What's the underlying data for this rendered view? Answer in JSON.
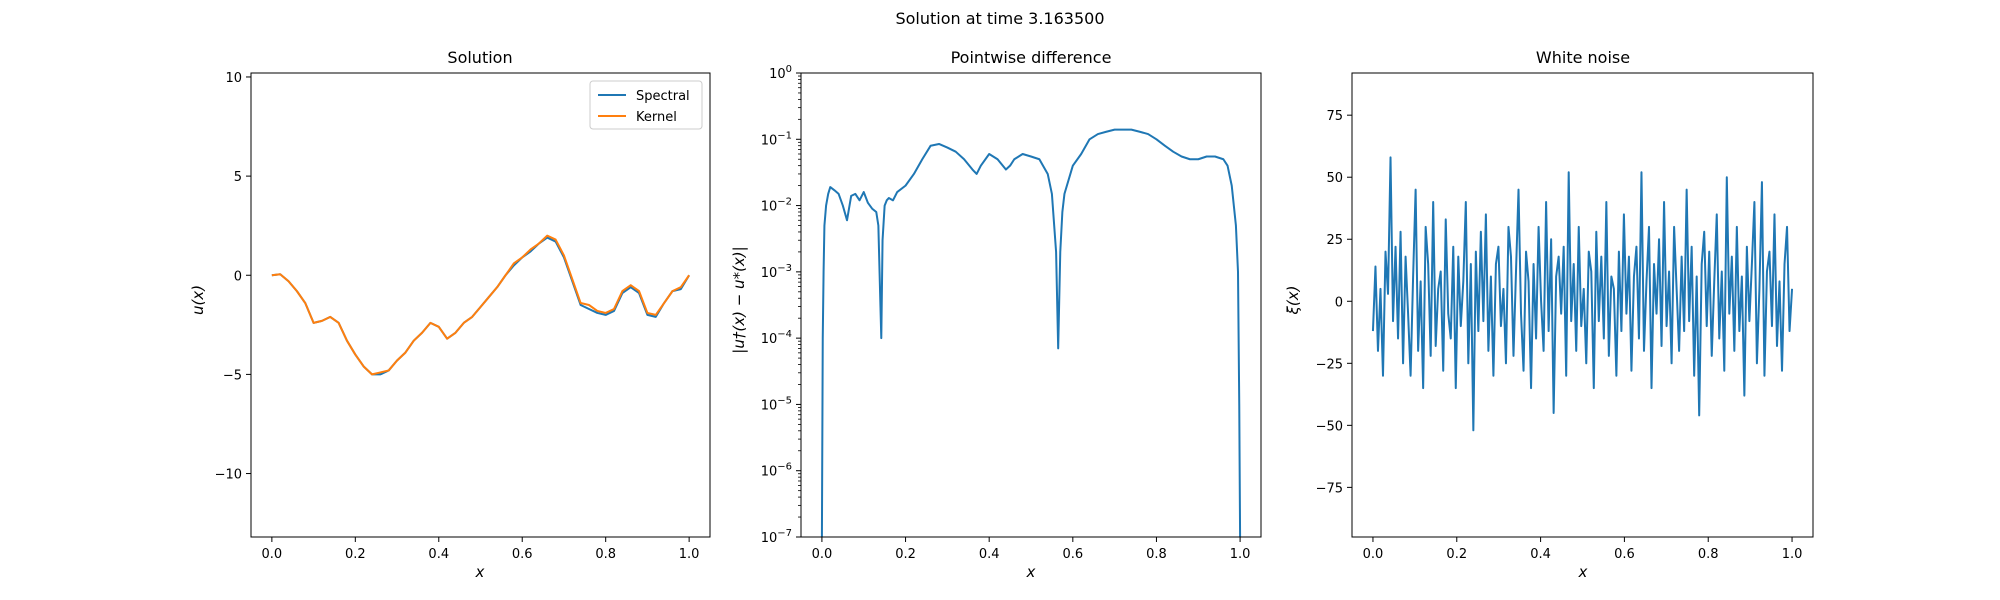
{
  "suptitle": "Solution at time 3.163500",
  "colors": {
    "blue": "#1f77b4",
    "orange": "#ff7f0e"
  },
  "chart_data": [
    {
      "type": "line",
      "title": "Solution",
      "xlabel": "x",
      "ylabel": "u(x)",
      "xlim": [
        -0.05,
        1.05
      ],
      "ylim": [
        -13.2,
        10.2
      ],
      "xticks": [
        0.0,
        0.2,
        0.4,
        0.6,
        0.8,
        1.0
      ],
      "xtick_labels": [
        "0.0",
        "0.2",
        "0.4",
        "0.6",
        "0.8",
        "1.0"
      ],
      "yticks": [
        -10,
        -5,
        0,
        5,
        10
      ],
      "ytick_labels": [
        "−10",
        "−5",
        "0",
        "5",
        "10"
      ],
      "legend": {
        "position": "upper right",
        "entries": [
          "Spectral",
          "Kernel"
        ]
      },
      "grid": false,
      "x": [
        0.0,
        0.02,
        0.04,
        0.06,
        0.08,
        0.1,
        0.12,
        0.14,
        0.16,
        0.18,
        0.2,
        0.22,
        0.24,
        0.26,
        0.28,
        0.3,
        0.32,
        0.34,
        0.36,
        0.38,
        0.4,
        0.42,
        0.44,
        0.46,
        0.48,
        0.5,
        0.52,
        0.54,
        0.56,
        0.58,
        0.6,
        0.62,
        0.64,
        0.66,
        0.68,
        0.7,
        0.72,
        0.74,
        0.76,
        0.78,
        0.8,
        0.82,
        0.84,
        0.86,
        0.88,
        0.9,
        0.92,
        0.94,
        0.96,
        0.98,
        1.0
      ],
      "series": [
        {
          "name": "Spectral",
          "color": "#1f77b4",
          "values": [
            0.0,
            0.05,
            -0.3,
            -0.8,
            -1.4,
            -2.4,
            -2.3,
            -2.1,
            -2.4,
            -3.3,
            -4.0,
            -4.6,
            -5.0,
            -5.0,
            -4.8,
            -4.3,
            -3.9,
            -3.3,
            -2.9,
            -2.4,
            -2.6,
            -3.2,
            -2.9,
            -2.4,
            -2.1,
            -1.6,
            -1.1,
            -0.6,
            0.0,
            0.5,
            0.9,
            1.2,
            1.6,
            1.9,
            1.7,
            0.9,
            -0.3,
            -1.5,
            -1.7,
            -1.9,
            -2.0,
            -1.8,
            -0.9,
            -0.6,
            -0.9,
            -2.0,
            -2.1,
            -1.4,
            -0.8,
            -0.7,
            0.0
          ]
        },
        {
          "name": "Kernel",
          "color": "#ff7f0e",
          "values": [
            0.0,
            0.05,
            -0.3,
            -0.8,
            -1.4,
            -2.4,
            -2.3,
            -2.1,
            -2.4,
            -3.3,
            -4.0,
            -4.6,
            -5.0,
            -4.9,
            -4.8,
            -4.3,
            -3.9,
            -3.3,
            -2.9,
            -2.4,
            -2.6,
            -3.2,
            -2.9,
            -2.4,
            -2.1,
            -1.6,
            -1.1,
            -0.6,
            0.0,
            0.6,
            0.9,
            1.3,
            1.6,
            2.0,
            1.8,
            1.0,
            -0.2,
            -1.4,
            -1.5,
            -1.8,
            -1.9,
            -1.7,
            -0.8,
            -0.5,
            -0.8,
            -1.9,
            -2.0,
            -1.4,
            -0.8,
            -0.6,
            0.0
          ]
        }
      ]
    },
    {
      "type": "line",
      "title": "Pointwise difference",
      "xlabel": "x",
      "ylabel": "|u†(x) − u*(x)|",
      "yscale": "log",
      "xlim": [
        -0.05,
        1.05
      ],
      "ylim": [
        1e-07,
        1
      ],
      "xticks": [
        0.0,
        0.2,
        0.4,
        0.6,
        0.8,
        1.0
      ],
      "xtick_labels": [
        "0.0",
        "0.2",
        "0.4",
        "0.6",
        "0.8",
        "1.0"
      ],
      "yticks": [
        1e-07,
        1e-06,
        1e-05,
        0.0001,
        0.001,
        0.01,
        0.1,
        1
      ],
      "ytick_labels": [
        {
          "base": "10",
          "exp": "−7"
        },
        {
          "base": "10",
          "exp": "−6"
        },
        {
          "base": "10",
          "exp": "−5"
        },
        {
          "base": "10",
          "exp": "−4"
        },
        {
          "base": "10",
          "exp": "−3"
        },
        {
          "base": "10",
          "exp": "−2"
        },
        {
          "base": "10",
          "exp": "−1"
        },
        {
          "base": "10",
          "exp": "0"
        }
      ],
      "grid": false,
      "series": [
        {
          "color": "#1f77b4",
          "x": [
            0.0,
            0.002,
            0.004,
            0.006,
            0.01,
            0.015,
            0.02,
            0.03,
            0.04,
            0.05,
            0.06,
            0.07,
            0.08,
            0.09,
            0.1,
            0.11,
            0.12,
            0.13,
            0.135,
            0.14,
            0.142,
            0.145,
            0.15,
            0.155,
            0.16,
            0.17,
            0.18,
            0.2,
            0.22,
            0.24,
            0.26,
            0.28,
            0.3,
            0.32,
            0.34,
            0.36,
            0.37,
            0.38,
            0.4,
            0.42,
            0.44,
            0.45,
            0.46,
            0.48,
            0.5,
            0.52,
            0.54,
            0.55,
            0.56,
            0.565,
            0.57,
            0.575,
            0.58,
            0.6,
            0.62,
            0.64,
            0.66,
            0.68,
            0.7,
            0.72,
            0.74,
            0.76,
            0.78,
            0.8,
            0.82,
            0.84,
            0.86,
            0.88,
            0.9,
            0.92,
            0.94,
            0.96,
            0.97,
            0.98,
            0.99,
            0.995,
            0.998,
            1.0
          ],
          "values": [
            1e-07,
            0.0001,
            0.001,
            0.005,
            0.01,
            0.015,
            0.019,
            0.017,
            0.015,
            0.01,
            0.006,
            0.014,
            0.015,
            0.012,
            0.016,
            0.011,
            0.009,
            0.008,
            0.005,
            0.0003,
            0.0001,
            0.003,
            0.01,
            0.012,
            0.013,
            0.012,
            0.016,
            0.02,
            0.03,
            0.05,
            0.08,
            0.085,
            0.075,
            0.065,
            0.05,
            0.035,
            0.03,
            0.04,
            0.06,
            0.05,
            0.035,
            0.04,
            0.05,
            0.06,
            0.055,
            0.05,
            0.03,
            0.015,
            0.002,
            7e-05,
            0.002,
            0.008,
            0.015,
            0.04,
            0.06,
            0.1,
            0.12,
            0.13,
            0.14,
            0.14,
            0.14,
            0.13,
            0.12,
            0.1,
            0.08,
            0.065,
            0.055,
            0.05,
            0.05,
            0.055,
            0.055,
            0.05,
            0.04,
            0.02,
            0.005,
            0.001,
            1e-05,
            1e-07
          ]
        }
      ]
    },
    {
      "type": "line",
      "title": "White noise",
      "xlabel": "x",
      "ylabel": "ξ(x)",
      "xlim": [
        -0.05,
        1.05
      ],
      "ylim": [
        -95,
        92
      ],
      "xticks": [
        0.0,
        0.2,
        0.4,
        0.6,
        0.8,
        1.0
      ],
      "xtick_labels": [
        "0.0",
        "0.2",
        "0.4",
        "0.6",
        "0.8",
        "1.0"
      ],
      "yticks": [
        -75,
        -50,
        -25,
        0,
        25,
        50,
        75
      ],
      "ytick_labels": [
        "−75",
        "−50",
        "−25",
        "0",
        "25",
        "50",
        "75"
      ],
      "grid": false,
      "series": [
        {
          "color": "#1f77b4",
          "x_start": 0.0,
          "x_end": 1.0,
          "values": [
            -12,
            14,
            -20,
            5,
            -30,
            20,
            3,
            58,
            -8,
            22,
            -15,
            28,
            -25,
            18,
            -5,
            -30,
            10,
            45,
            -20,
            8,
            -35,
            30,
            15,
            -22,
            40,
            -18,
            5,
            12,
            -28,
            33,
            -5,
            -15,
            22,
            -35,
            18,
            -10,
            8,
            40,
            -25,
            15,
            -52,
            20,
            -12,
            28,
            -8,
            35,
            -20,
            10,
            -30,
            15,
            22,
            -10,
            5,
            -25,
            30,
            18,
            -22,
            12,
            45,
            -5,
            -28,
            20,
            8,
            -35,
            15,
            -15,
            30,
            0,
            -20,
            40,
            -12,
            25,
            -45,
            10,
            18,
            -5,
            22,
            -30,
            52,
            -8,
            15,
            -20,
            30,
            -10,
            5,
            -25,
            20,
            12,
            -35,
            28,
            -8,
            18,
            -15,
            40,
            -22,
            10,
            5,
            -30,
            20,
            -12,
            35,
            -5,
            18,
            -28,
            10,
            22,
            -15,
            52,
            -20,
            8,
            30,
            -35,
            15,
            -5,
            25,
            -18,
            40,
            -10,
            12,
            -25,
            30,
            5,
            -20,
            18,
            -12,
            45,
            -8,
            22,
            -30,
            10,
            -46,
            15,
            28,
            -10,
            20,
            -22,
            8,
            35,
            -15,
            12,
            -28,
            50,
            -5,
            18,
            -20,
            30,
            -12,
            10,
            -38,
            22,
            -8,
            15,
            40,
            -25,
            5,
            48,
            -30,
            12,
            20,
            -10,
            35,
            -18,
            8,
            -28,
            15,
            30,
            -12,
            5
          ]
        }
      ]
    }
  ]
}
